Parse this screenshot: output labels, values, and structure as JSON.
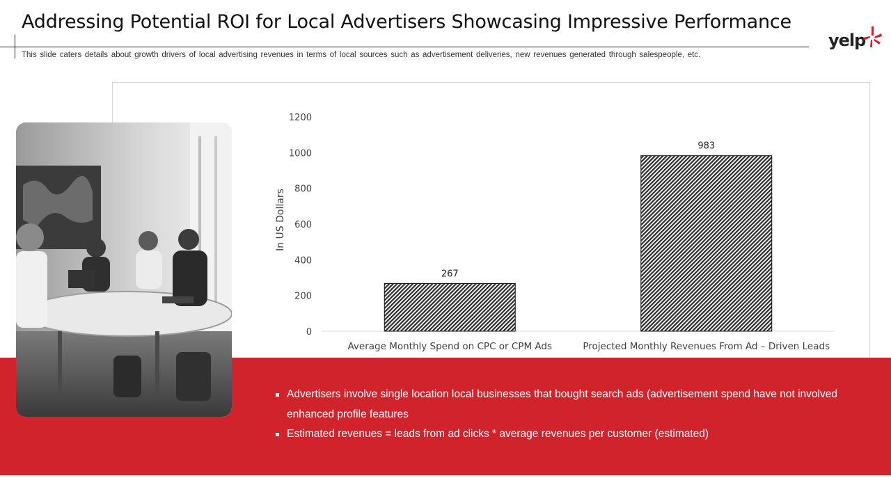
{
  "slide": {
    "title": "Addressing Potential ROI for Local Advertisers Showcasing Impressive Performance",
    "subtitle": "This slide caters details about growth drivers of local advertising revenues in terms of local sources such as advertisement deliveries, new revenues generated through salespeople, etc.",
    "logo_text": "yelp",
    "logo_icon": "yelp-burst-icon",
    "photo_description_icon": "meeting-photo",
    "bullets": [
      "Advertisers involve single location local businesses that bought search ads (advertisement spend have not involved enhanced profile features",
      "Estimated revenues = leads from ad clicks * average revenues per customer (estimated)"
    ]
  },
  "colors": {
    "accent_red": "#d0232c",
    "bar_fill": "#3a3a3a",
    "axis": "#d9d9d9"
  },
  "chart_data": {
    "type": "bar",
    "categories": [
      "Average Monthly Spend on CPC or CPM Ads",
      "Projected Monthly  Revenues From Ad – Driven Leads"
    ],
    "values": [
      267,
      983
    ],
    "data_labels": [
      "267",
      "983"
    ],
    "title": "",
    "xlabel": "",
    "ylabel": "In US Dollars",
    "ylim": [
      0,
      1200
    ],
    "yticks": [
      0,
      200,
      400,
      600,
      800,
      1000,
      1200
    ],
    "grid": false,
    "legend": "none",
    "bar_pattern": "diagonal-hatch"
  }
}
